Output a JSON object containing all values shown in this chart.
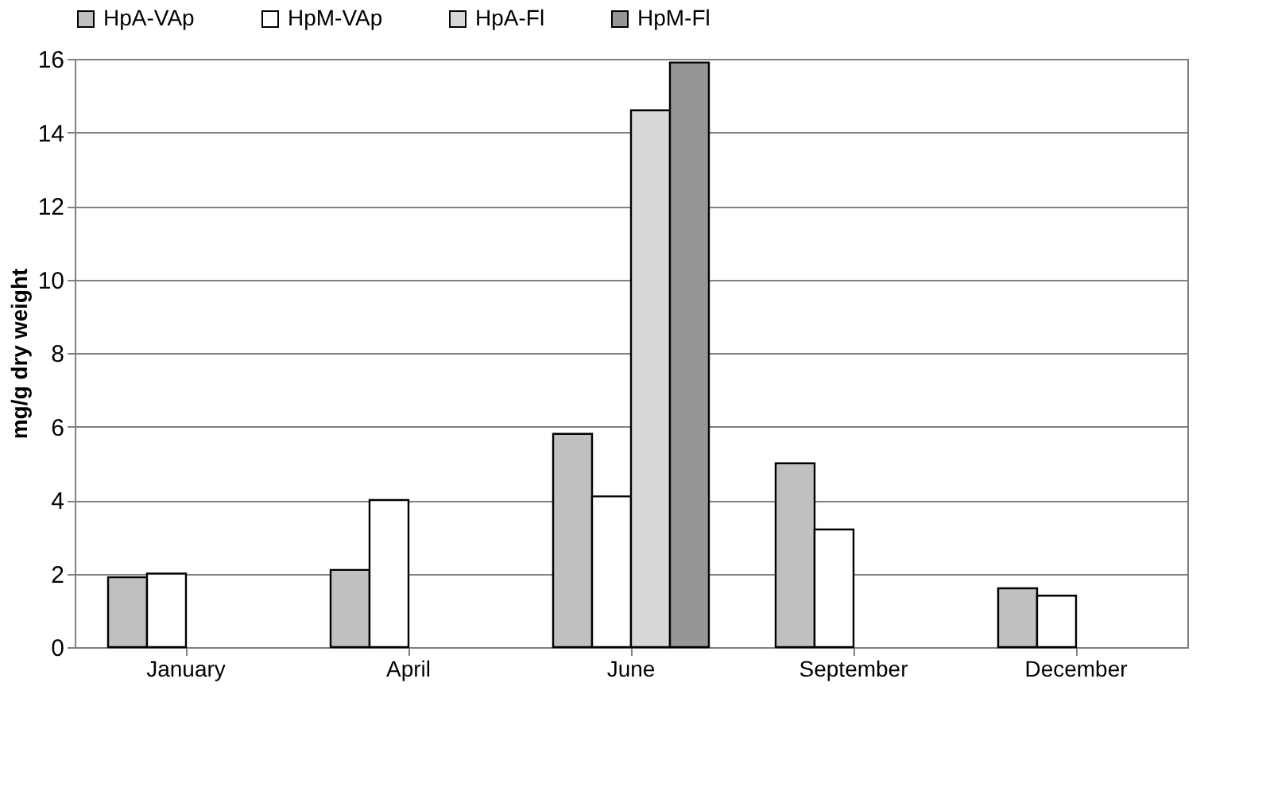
{
  "chart_data": {
    "type": "bar",
    "ylabel": "mg/g dry weight",
    "categories": [
      "January",
      "April",
      "June",
      "September",
      "December"
    ],
    "series": [
      {
        "name": "HpA-VAp",
        "color": "#c0c0c0",
        "values": [
          1.9,
          2.1,
          5.8,
          5.0,
          1.6
        ]
      },
      {
        "name": "HpM-VAp",
        "color": "#ffffff",
        "values": [
          2.0,
          4.0,
          4.1,
          3.2,
          1.4
        ]
      },
      {
        "name": "HpA-Fl",
        "color": "#d8d8d8",
        "values": [
          null,
          null,
          14.6,
          null,
          null
        ]
      },
      {
        "name": "HpM-Fl",
        "color": "#969696",
        "values": [
          null,
          null,
          15.9,
          null,
          null
        ]
      }
    ],
    "ylim": [
      0,
      16
    ],
    "yticks": [
      0,
      2,
      4,
      6,
      8,
      10,
      12,
      14,
      16
    ],
    "grid": "y",
    "legend": "top"
  }
}
